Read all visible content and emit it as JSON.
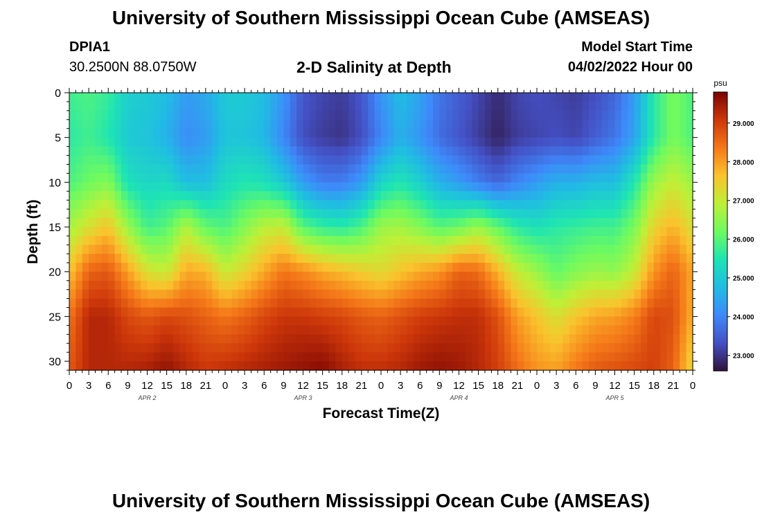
{
  "header": {
    "title": "University of Southern Mississippi Ocean Cube (AMSEAS)",
    "station_id": "DPIA1",
    "coordinates": "30.2500N  88.0750W",
    "subtitle": "2-D Salinity at Depth",
    "model_start_label": "Model Start Time",
    "model_start_value": "04/02/2022 Hour 00"
  },
  "footer": {
    "title": "University of Southern Mississippi Ocean Cube (AMSEAS)"
  },
  "chart_data": {
    "type": "heatmap",
    "title": "2-D Salinity at Depth",
    "xlabel": "Forecast Time(Z)",
    "ylabel": "Depth (ft)",
    "x_tick_labels": [
      "0",
      "3",
      "6",
      "9",
      "12",
      "15",
      "18",
      "21",
      "0",
      "3",
      "6",
      "9",
      "12",
      "15",
      "18",
      "21",
      "0",
      "3",
      "6",
      "9",
      "12",
      "15",
      "18",
      "21",
      "0",
      "3",
      "6",
      "9",
      "12",
      "15",
      "18",
      "21",
      "0"
    ],
    "date_labels": [
      "APR 2",
      "APR 3",
      "APR 4",
      "APR 5"
    ],
    "xlim_hours": [
      0,
      96
    ],
    "ylim_ft": [
      0,
      31
    ],
    "y_tick_labels": [
      "0",
      "5",
      "10",
      "15",
      "20",
      "25",
      "30"
    ],
    "y_ticks": [
      0,
      5,
      10,
      15,
      20,
      25,
      30
    ],
    "colorbar": {
      "unit": "psu",
      "range": [
        22.6,
        29.8
      ],
      "ticks": [
        23,
        24,
        25,
        26,
        27,
        28,
        29
      ],
      "tick_labels": [
        "23.000",
        "24.000",
        "25.000",
        "26.000",
        "27.000",
        "28.000",
        "29.000"
      ]
    },
    "depths_ft": [
      0,
      5,
      10,
      15,
      20,
      25,
      31
    ],
    "times_h": [
      0,
      3,
      6,
      9,
      12,
      15,
      18,
      21,
      24,
      27,
      30,
      33,
      36,
      39,
      42,
      45,
      48,
      51,
      54,
      57,
      60,
      63,
      66,
      69,
      72,
      75,
      78,
      81,
      84,
      87,
      90,
      93,
      96
    ],
    "salinity_psu": [
      [
        25.8,
        25.9,
        25.7,
        25.1,
        25.0,
        24.8,
        24.3,
        24.5,
        25.0,
        25.0,
        24.8,
        24.2,
        23.4,
        23.2,
        23.1,
        23.4,
        24.2,
        24.8,
        24.4,
        23.8,
        23.5,
        23.2,
        22.9,
        23.2,
        23.3,
        23.2,
        23.1,
        23.3,
        23.6,
        24.3,
        25.6,
        26.3,
        25.9
      ],
      [
        25.6,
        25.8,
        25.5,
        25.0,
        24.9,
        24.6,
        24.1,
        24.3,
        24.9,
        24.9,
        24.7,
        24.0,
        23.3,
        23.1,
        23.0,
        23.3,
        24.0,
        24.6,
        24.2,
        23.7,
        23.4,
        23.1,
        22.8,
        23.1,
        23.2,
        23.3,
        23.2,
        23.5,
        23.8,
        24.4,
        25.6,
        26.3,
        25.9
      ],
      [
        25.9,
        26.2,
        26.4,
        25.4,
        25.2,
        25.3,
        24.8,
        24.8,
        25.3,
        25.5,
        25.4,
        25.0,
        24.3,
        23.9,
        23.9,
        24.3,
        25.2,
        25.5,
        25.1,
        24.6,
        24.3,
        23.9,
        23.6,
        24.0,
        24.3,
        24.6,
        24.6,
        24.8,
        24.8,
        25.5,
        26.6,
        27.0,
        26.6
      ],
      [
        26.7,
        27.2,
        27.6,
        26.6,
        25.8,
        26.0,
        26.8,
        26.1,
        25.9,
        26.4,
        26.9,
        27.0,
        26.0,
        25.7,
        25.6,
        25.9,
        26.6,
        26.7,
        26.4,
        26.0,
        26.2,
        26.6,
        26.1,
        25.6,
        25.4,
        25.6,
        25.7,
        25.8,
        25.8,
        26.3,
        27.4,
        27.8,
        27.2
      ],
      [
        27.6,
        28.6,
        28.7,
        28.0,
        27.2,
        27.0,
        27.9,
        27.8,
        27.0,
        27.4,
        27.9,
        28.4,
        28.2,
        27.9,
        27.7,
        27.5,
        27.3,
        27.6,
        27.9,
        28.1,
        28.6,
        28.5,
        27.8,
        27.0,
        26.6,
        26.1,
        26.4,
        26.6,
        26.5,
        27.0,
        28.1,
        28.6,
        27.9
      ],
      [
        28.4,
        29.3,
        29.3,
        28.9,
        28.7,
        28.9,
        28.8,
        28.6,
        28.4,
        28.6,
        28.9,
        29.1,
        29.1,
        29.0,
        28.9,
        28.7,
        28.6,
        28.8,
        29.0,
        29.1,
        29.2,
        29.2,
        28.8,
        28.0,
        27.6,
        27.2,
        27.6,
        27.9,
        28.0,
        28.3,
        28.9,
        28.8,
        27.8
      ],
      [
        28.7,
        29.3,
        29.3,
        29.3,
        29.4,
        29.6,
        29.3,
        29.1,
        29.2,
        29.3,
        29.4,
        29.5,
        29.6,
        29.7,
        29.4,
        29.2,
        29.2,
        29.3,
        29.5,
        29.6,
        29.5,
        29.3,
        29.0,
        28.5,
        28.1,
        28.0,
        28.4,
        28.7,
        28.8,
        28.9,
        29.0,
        28.6,
        27.3
      ]
    ]
  }
}
